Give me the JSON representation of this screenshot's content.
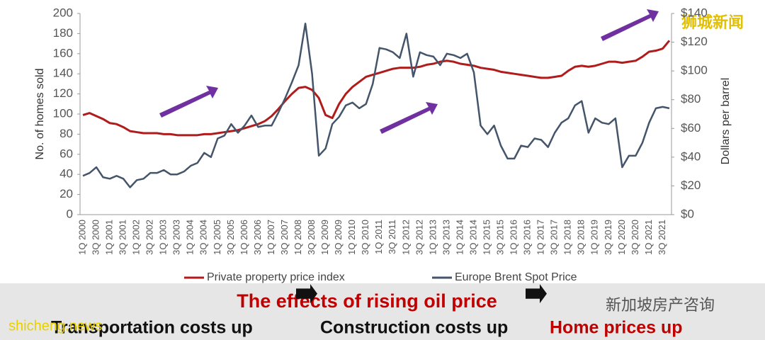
{
  "chart_data": {
    "type": "line",
    "categories": [
      "1Q 2000",
      null,
      "3Q 2000",
      null,
      "1Q 2001",
      null,
      "3Q 2001",
      null,
      "1Q 2002",
      null,
      "3Q 2002",
      null,
      "1Q 2003",
      null,
      "3Q 2003",
      null,
      "1Q 2004",
      null,
      "3Q 2004",
      null,
      "1Q 2005",
      null,
      "3Q 2005",
      null,
      "1Q 2006",
      null,
      "3Q 2006",
      null,
      "1Q 2007",
      null,
      "3Q 2007",
      null,
      "1Q 2008",
      null,
      "3Q 2008",
      null,
      "1Q 2009",
      null,
      "3Q 2009",
      null,
      "1Q 2010",
      null,
      "3Q 2010",
      null,
      "1Q 2011",
      null,
      "3Q 2011",
      null,
      "1Q 2012",
      null,
      "3Q 2012",
      null,
      "1Q 2013",
      null,
      "3Q 2013",
      null,
      "1Q 2014",
      null,
      "3Q 2014",
      null,
      "1Q 2015",
      null,
      "3Q 2015",
      null,
      "1Q 2016",
      null,
      "3Q 2016",
      null,
      "1Q 2017",
      null,
      "3Q 2017",
      null,
      "1Q 2018",
      null,
      "3Q 2018",
      null,
      "1Q 2019",
      null,
      "3Q 2019",
      null,
      "1Q 2020",
      null,
      "3Q 2020",
      null,
      "1Q 2021",
      null,
      "3Q 2021",
      null
    ],
    "series": [
      {
        "name": "Private property price index",
        "color": "#b01c1c",
        "values": [
          99,
          101,
          98,
          95,
          91,
          90,
          87,
          83,
          82,
          81,
          81,
          81,
          80,
          80,
          79,
          79,
          79,
          79,
          80,
          80,
          81,
          82,
          83,
          84,
          86,
          88,
          90,
          93,
          98,
          105,
          113,
          120,
          126,
          127,
          124,
          116,
          99,
          96,
          110,
          120,
          127,
          132,
          137,
          139,
          141,
          143,
          145,
          146,
          146,
          146,
          147,
          149,
          150,
          152,
          153,
          152,
          150,
          149,
          148,
          146,
          145,
          144,
          142,
          141,
          140,
          139,
          138,
          137,
          136,
          136,
          137,
          138,
          143,
          147,
          148,
          147,
          148,
          150,
          152,
          152,
          151,
          152,
          153,
          157,
          162,
          163,
          165,
          173
        ]
      },
      {
        "name": "Europe Brent Spot Price",
        "color": "#44546a",
        "axis": "y2",
        "values": [
          27,
          29,
          33,
          26,
          25,
          27,
          25,
          19,
          24,
          25,
          29,
          29,
          31,
          28,
          28,
          30,
          34,
          36,
          43,
          40,
          53,
          55,
          63,
          57,
          62,
          69,
          61,
          62,
          62,
          71,
          81,
          92,
          104,
          133,
          98,
          41,
          46,
          63,
          68,
          76,
          78,
          74,
          77,
          91,
          116,
          115,
          113,
          109,
          126,
          96,
          113,
          111,
          110,
          104,
          112,
          111,
          109,
          112,
          99,
          62,
          56,
          62,
          48,
          39,
          39,
          48,
          47,
          53,
          52,
          47,
          57,
          64,
          67,
          76,
          79,
          57,
          67,
          64,
          63,
          67,
          33,
          41,
          41,
          50,
          64,
          74,
          75,
          74
        ]
      }
    ],
    "y_label": "No. of homes sold",
    "y2_label": "Dollars per barrel",
    "ylim": [
      0,
      200
    ],
    "yticks": [
      0,
      20,
      40,
      60,
      80,
      100,
      120,
      140,
      160,
      180,
      200
    ],
    "y2lim": [
      0,
      140
    ],
    "y2ticks": [
      {
        "value": 0,
        "label": "$0"
      },
      {
        "value": 20,
        "label": "$20"
      },
      {
        "value": 40,
        "label": "$40"
      },
      {
        "value": 60,
        "label": "$60"
      },
      {
        "value": 80,
        "label": "$80"
      },
      {
        "value": 100,
        "label": "$100"
      },
      {
        "value": 120,
        "label": "$120"
      },
      {
        "value": 140,
        "label": "$140"
      }
    ],
    "grid": false,
    "legend": "bottom"
  },
  "banner": {
    "title": "The effects of rising oil price",
    "steps": [
      "Transportation costs up",
      "Construction costs up",
      "Home prices up"
    ]
  },
  "watermarks": [
    "狮城新闻",
    "新加坡房产咨询",
    "shicheng.news"
  ]
}
